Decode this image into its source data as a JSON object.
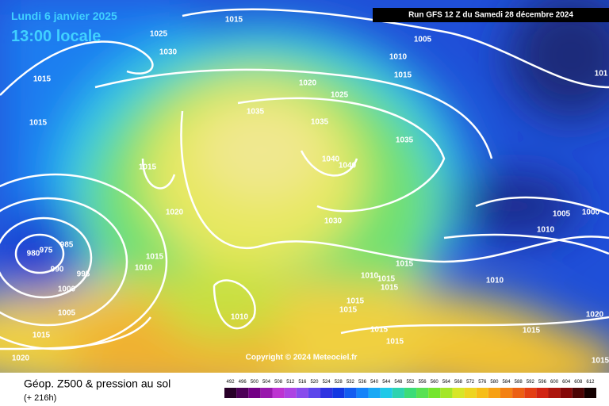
{
  "header": {
    "date": "Lundi 6 janvier 2025",
    "time": "13:00 locale",
    "run": "Run GFS 12 Z du Samedi 28 décembre 2024"
  },
  "copyright": "Copyright © 2024 Meteociel.fr",
  "legend": {
    "title": "Géop. Z500 & pression au sol",
    "lead": "(+ 216h)",
    "scale": [
      492,
      496,
      500,
      504,
      508,
      512,
      516,
      520,
      524,
      528,
      532,
      536,
      540,
      544,
      548,
      552,
      556,
      560,
      564,
      568,
      572,
      576,
      580,
      584,
      588,
      592,
      596,
      600,
      604,
      608,
      612
    ]
  },
  "isobar_labels": [
    1015,
    1025,
    1030,
    1005,
    1010,
    1015,
    1015,
    1020,
    1025,
    1035,
    1035,
    1015,
    1035,
    1040,
    1040,
    1015,
    1020,
    1030,
    1005,
    1000,
    1010,
    985,
    980,
    975,
    990,
    995,
    1015,
    1010,
    1015,
    1010,
    1015,
    1015,
    1010,
    1000,
    1015,
    1015,
    1005,
    1010,
    1015,
    1015,
    1015,
    1015,
    1020,
    1015,
    1020,
    101
  ]
}
